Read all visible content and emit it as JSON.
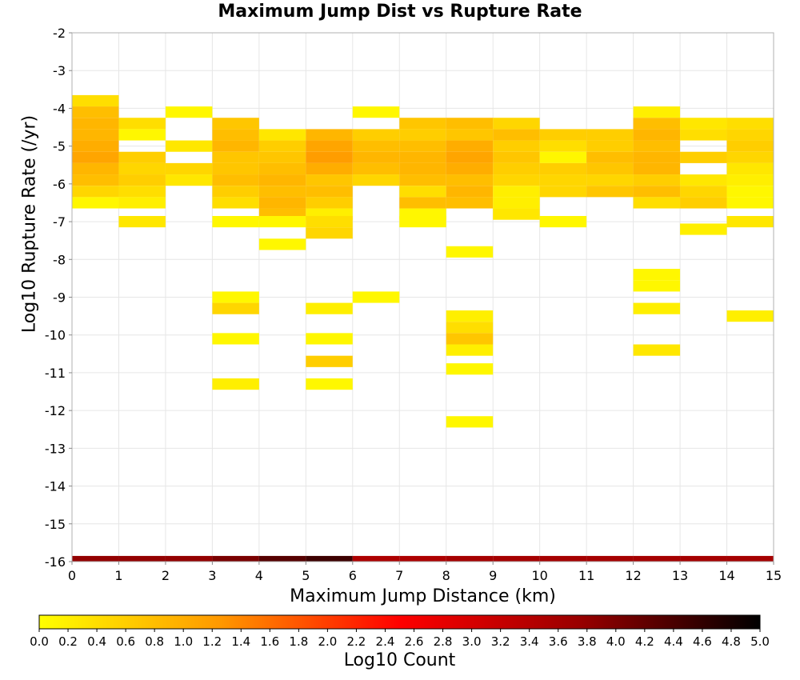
{
  "chart_data": {
    "type": "heatmap",
    "title": "Maximum Jump Dist vs Rupture Rate",
    "xlabel": "Maximum Jump Distance (km)",
    "ylabel": "Log10 Rupture Rate (/yr)",
    "xlim": [
      0,
      15
    ],
    "ylim": [
      -16,
      -2
    ],
    "x_ticks": [
      0,
      1,
      2,
      3,
      4,
      5,
      6,
      7,
      8,
      9,
      10,
      11,
      12,
      13,
      14,
      15
    ],
    "y_ticks": [
      -2,
      -3,
      -4,
      -5,
      -6,
      -7,
      -8,
      -9,
      -10,
      -11,
      -12,
      -13,
      -14,
      -15,
      -16
    ],
    "x_bin_width": 1,
    "y_bin_height": 0.3,
    "grid": true,
    "colorbar": {
      "label": "Log10 Count",
      "range": [
        0,
        5
      ],
      "ticks": [
        "0.0",
        "0.2",
        "0.4",
        "0.6",
        "0.8",
        "1.0",
        "1.2",
        "1.4",
        "1.6",
        "1.8",
        "2.0",
        "2.2",
        "2.4",
        "2.6",
        "2.8",
        "3.0",
        "3.2",
        "3.4",
        "3.6",
        "3.8",
        "4.0",
        "4.2",
        "4.4",
        "4.6",
        "4.8",
        "5.0"
      ],
      "colors": [
        "#ffff00",
        "#ff9900",
        "#ff0000",
        "#990000",
        "#000000"
      ]
    },
    "cells": [
      {
        "x": 0,
        "y": -3.8,
        "v": 0.4
      },
      {
        "x": 0,
        "y": -4.1,
        "v": 0.8
      },
      {
        "x": 0,
        "y": -4.4,
        "v": 0.9
      },
      {
        "x": 0,
        "y": -4.7,
        "v": 0.9
      },
      {
        "x": 0,
        "y": -5.0,
        "v": 1.0
      },
      {
        "x": 0,
        "y": -5.3,
        "v": 1.1
      },
      {
        "x": 0,
        "y": -5.6,
        "v": 0.9
      },
      {
        "x": 0,
        "y": -5.9,
        "v": 0.8
      },
      {
        "x": 0,
        "y": -6.2,
        "v": 0.5
      },
      {
        "x": 0,
        "y": -6.5,
        "v": 0.1
      },
      {
        "x": 1,
        "y": -4.4,
        "v": 0.4
      },
      {
        "x": 1,
        "y": -4.7,
        "v": 0.1
      },
      {
        "x": 1,
        "y": -5.3,
        "v": 0.6
      },
      {
        "x": 1,
        "y": -5.6,
        "v": 0.5
      },
      {
        "x": 1,
        "y": -5.9,
        "v": 0.6
      },
      {
        "x": 1,
        "y": -6.2,
        "v": 0.4
      },
      {
        "x": 1,
        "y": -6.5,
        "v": 0.2
      },
      {
        "x": 1,
        "y": -7.0,
        "v": 0.3
      },
      {
        "x": 2,
        "y": -4.1,
        "v": 0.1
      },
      {
        "x": 2,
        "y": -5.0,
        "v": 0.3
      },
      {
        "x": 2,
        "y": -5.6,
        "v": 0.5
      },
      {
        "x": 2,
        "y": -5.9,
        "v": 0.3
      },
      {
        "x": 3,
        "y": -4.4,
        "v": 0.7
      },
      {
        "x": 3,
        "y": -4.7,
        "v": 0.8
      },
      {
        "x": 3,
        "y": -5.0,
        "v": 0.9
      },
      {
        "x": 3,
        "y": -5.3,
        "v": 0.7
      },
      {
        "x": 3,
        "y": -5.6,
        "v": 0.7
      },
      {
        "x": 3,
        "y": -5.9,
        "v": 0.8
      },
      {
        "x": 3,
        "y": -6.2,
        "v": 0.6
      },
      {
        "x": 3,
        "y": -6.5,
        "v": 0.4
      },
      {
        "x": 3,
        "y": -7.0,
        "v": 0.1
      },
      {
        "x": 3,
        "y": -9.0,
        "v": 0.1
      },
      {
        "x": 3,
        "y": -9.3,
        "v": 0.5
      },
      {
        "x": 3,
        "y": -10.1,
        "v": 0.1
      },
      {
        "x": 3,
        "y": -11.3,
        "v": 0.2
      },
      {
        "x": 4,
        "y": -4.7,
        "v": 0.3
      },
      {
        "x": 4,
        "y": -5.0,
        "v": 0.6
      },
      {
        "x": 4,
        "y": -5.3,
        "v": 0.7
      },
      {
        "x": 4,
        "y": -5.6,
        "v": 0.8
      },
      {
        "x": 4,
        "y": -5.9,
        "v": 0.9
      },
      {
        "x": 4,
        "y": -6.2,
        "v": 0.8
      },
      {
        "x": 4,
        "y": -6.5,
        "v": 0.9
      },
      {
        "x": 4,
        "y": -6.8,
        "v": 0.8
      },
      {
        "x": 4,
        "y": -7.0,
        "v": 0.1
      },
      {
        "x": 4,
        "y": -7.6,
        "v": 0.1
      },
      {
        "x": 5,
        "y": -4.7,
        "v": 0.9
      },
      {
        "x": 5,
        "y": -5.0,
        "v": 1.1
      },
      {
        "x": 5,
        "y": -5.3,
        "v": 1.2
      },
      {
        "x": 5,
        "y": -5.6,
        "v": 1.0
      },
      {
        "x": 5,
        "y": -5.9,
        "v": 0.7
      },
      {
        "x": 5,
        "y": -6.2,
        "v": 0.8
      },
      {
        "x": 5,
        "y": -6.5,
        "v": 0.6
      },
      {
        "x": 5,
        "y": -6.8,
        "v": 0.2
      },
      {
        "x": 5,
        "y": -7.0,
        "v": 0.4
      },
      {
        "x": 5,
        "y": -7.3,
        "v": 0.5
      },
      {
        "x": 5,
        "y": -9.3,
        "v": 0.2
      },
      {
        "x": 5,
        "y": -10.1,
        "v": 0.1
      },
      {
        "x": 5,
        "y": -10.7,
        "v": 0.6
      },
      {
        "x": 5,
        "y": -11.3,
        "v": 0.1
      },
      {
        "x": 6,
        "y": -4.1,
        "v": 0.1
      },
      {
        "x": 6,
        "y": -4.7,
        "v": 0.6
      },
      {
        "x": 6,
        "y": -5.0,
        "v": 0.8
      },
      {
        "x": 6,
        "y": -5.3,
        "v": 0.9
      },
      {
        "x": 6,
        "y": -5.6,
        "v": 0.8
      },
      {
        "x": 6,
        "y": -5.9,
        "v": 0.5
      },
      {
        "x": 6,
        "y": -9.0,
        "v": 0.1
      },
      {
        "x": 7,
        "y": -4.4,
        "v": 0.7
      },
      {
        "x": 7,
        "y": -4.7,
        "v": 0.6
      },
      {
        "x": 7,
        "y": -5.0,
        "v": 0.8
      },
      {
        "x": 7,
        "y": -5.3,
        "v": 0.9
      },
      {
        "x": 7,
        "y": -5.6,
        "v": 0.9
      },
      {
        "x": 7,
        "y": -5.9,
        "v": 0.8
      },
      {
        "x": 7,
        "y": -6.2,
        "v": 0.4
      },
      {
        "x": 7,
        "y": -6.5,
        "v": 0.8
      },
      {
        "x": 7,
        "y": -6.8,
        "v": 0.1
      },
      {
        "x": 7,
        "y": -7.0,
        "v": 0.1
      },
      {
        "x": 8,
        "y": -4.4,
        "v": 0.8
      },
      {
        "x": 8,
        "y": -4.7,
        "v": 0.7
      },
      {
        "x": 8,
        "y": -5.0,
        "v": 1.0
      },
      {
        "x": 8,
        "y": -5.3,
        "v": 1.1
      },
      {
        "x": 8,
        "y": -5.6,
        "v": 1.0
      },
      {
        "x": 8,
        "y": -5.9,
        "v": 0.8
      },
      {
        "x": 8,
        "y": -6.2,
        "v": 0.9
      },
      {
        "x": 8,
        "y": -6.5,
        "v": 0.8
      },
      {
        "x": 8,
        "y": -7.8,
        "v": 0.1
      },
      {
        "x": 8,
        "y": -9.5,
        "v": 0.2
      },
      {
        "x": 8,
        "y": -9.8,
        "v": 0.4
      },
      {
        "x": 8,
        "y": -10.1,
        "v": 0.7
      },
      {
        "x": 8,
        "y": -10.4,
        "v": 0.2
      },
      {
        "x": 8,
        "y": -10.9,
        "v": 0.1
      },
      {
        "x": 8,
        "y": -12.3,
        "v": 0.1
      },
      {
        "x": 9,
        "y": -4.4,
        "v": 0.5
      },
      {
        "x": 9,
        "y": -4.7,
        "v": 0.8
      },
      {
        "x": 9,
        "y": -5.0,
        "v": 0.6
      },
      {
        "x": 9,
        "y": -5.3,
        "v": 0.7
      },
      {
        "x": 9,
        "y": -5.6,
        "v": 0.6
      },
      {
        "x": 9,
        "y": -5.9,
        "v": 0.5
      },
      {
        "x": 9,
        "y": -6.2,
        "v": 0.2
      },
      {
        "x": 9,
        "y": -6.5,
        "v": 0.2
      },
      {
        "x": 9,
        "y": -6.8,
        "v": 0.3
      },
      {
        "x": 10,
        "y": -4.7,
        "v": 0.6
      },
      {
        "x": 10,
        "y": -5.0,
        "v": 0.4
      },
      {
        "x": 10,
        "y": -5.3,
        "v": 0.1
      },
      {
        "x": 10,
        "y": -5.6,
        "v": 0.6
      },
      {
        "x": 10,
        "y": -5.9,
        "v": 0.5
      },
      {
        "x": 10,
        "y": -6.2,
        "v": 0.5
      },
      {
        "x": 10,
        "y": -7.0,
        "v": 0.1
      },
      {
        "x": 11,
        "y": -4.7,
        "v": 0.6
      },
      {
        "x": 11,
        "y": -5.0,
        "v": 0.6
      },
      {
        "x": 11,
        "y": -5.3,
        "v": 0.8
      },
      {
        "x": 11,
        "y": -5.6,
        "v": 0.7
      },
      {
        "x": 11,
        "y": -5.9,
        "v": 0.5
      },
      {
        "x": 11,
        "y": -6.2,
        "v": 0.7
      },
      {
        "x": 12,
        "y": -4.1,
        "v": 0.2
      },
      {
        "x": 12,
        "y": -4.4,
        "v": 0.8
      },
      {
        "x": 12,
        "y": -4.7,
        "v": 0.9
      },
      {
        "x": 12,
        "y": -5.0,
        "v": 0.8
      },
      {
        "x": 12,
        "y": -5.3,
        "v": 0.9
      },
      {
        "x": 12,
        "y": -5.6,
        "v": 0.9
      },
      {
        "x": 12,
        "y": -5.9,
        "v": 0.6
      },
      {
        "x": 12,
        "y": -6.2,
        "v": 0.8
      },
      {
        "x": 12,
        "y": -6.5,
        "v": 0.4
      },
      {
        "x": 12,
        "y": -8.4,
        "v": 0.1
      },
      {
        "x": 12,
        "y": -8.7,
        "v": 0.1
      },
      {
        "x": 12,
        "y": -9.3,
        "v": 0.2
      },
      {
        "x": 12,
        "y": -10.4,
        "v": 0.3
      },
      {
        "x": 13,
        "y": -4.4,
        "v": 0.3
      },
      {
        "x": 13,
        "y": -4.7,
        "v": 0.4
      },
      {
        "x": 13,
        "y": -5.3,
        "v": 0.6
      },
      {
        "x": 13,
        "y": -5.9,
        "v": 0.3
      },
      {
        "x": 13,
        "y": -6.2,
        "v": 0.5
      },
      {
        "x": 13,
        "y": -6.5,
        "v": 0.6
      },
      {
        "x": 13,
        "y": -7.2,
        "v": 0.2
      },
      {
        "x": 14,
        "y": -4.4,
        "v": 0.4
      },
      {
        "x": 14,
        "y": -4.7,
        "v": 0.5
      },
      {
        "x": 14,
        "y": -5.0,
        "v": 0.6
      },
      {
        "x": 14,
        "y": -5.3,
        "v": 0.5
      },
      {
        "x": 14,
        "y": -5.6,
        "v": 0.3
      },
      {
        "x": 14,
        "y": -5.9,
        "v": 0.2
      },
      {
        "x": 14,
        "y": -6.2,
        "v": 0.1
      },
      {
        "x": 14,
        "y": -6.5,
        "v": 0.1
      },
      {
        "x": 14,
        "y": -7.0,
        "v": 0.3
      },
      {
        "x": 14,
        "y": -9.5,
        "v": 0.2
      },
      {
        "x": 0,
        "y": -16.0,
        "v": 3.8
      },
      {
        "x": 1,
        "y": -16.0,
        "v": 3.8
      },
      {
        "x": 2,
        "y": -16.0,
        "v": 3.8
      },
      {
        "x": 3,
        "y": -16.0,
        "v": 4.0
      },
      {
        "x": 4,
        "y": -16.0,
        "v": 4.3
      },
      {
        "x": 5,
        "y": -16.0,
        "v": 4.5
      },
      {
        "x": 6,
        "y": -16.0,
        "v": 3.5
      },
      {
        "x": 7,
        "y": -16.0,
        "v": 3.5
      },
      {
        "x": 8,
        "y": -16.0,
        "v": 3.6
      },
      {
        "x": 9,
        "y": -16.0,
        "v": 3.6
      },
      {
        "x": 10,
        "y": -16.0,
        "v": 3.6
      },
      {
        "x": 11,
        "y": -16.0,
        "v": 3.6
      },
      {
        "x": 12,
        "y": -16.0,
        "v": 3.6
      },
      {
        "x": 13,
        "y": -16.0,
        "v": 3.6
      },
      {
        "x": 14,
        "y": -16.0,
        "v": 3.6
      }
    ]
  }
}
